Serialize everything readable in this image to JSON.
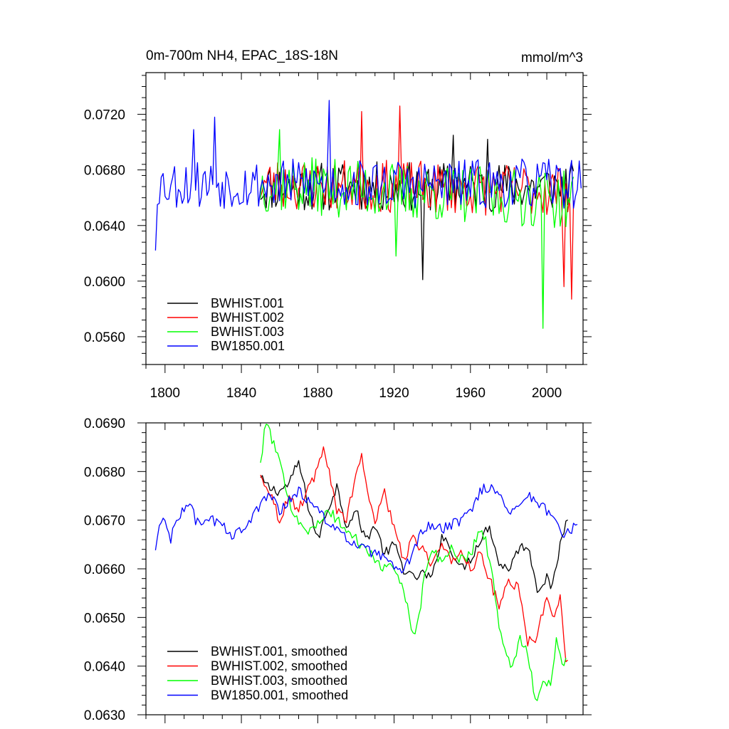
{
  "colors": {
    "black": "#000000",
    "red": "#ff0000",
    "green": "#00ff00",
    "blue": "#0000ff"
  },
  "chart_data": [
    {
      "type": "line",
      "title": "0m-700m NH4, EPAC_18S-18N",
      "units": "mmol/m^3",
      "xlim": [
        1790,
        2019
      ],
      "ylim": [
        0.054,
        0.075
      ],
      "xticks": [
        1800,
        1840,
        1880,
        1920,
        1960,
        2000
      ],
      "xtick_labels": [
        "1800",
        "1840",
        "1880",
        "1920",
        "1960",
        "2000"
      ],
      "yticks": [
        0.056,
        0.06,
        0.064,
        0.068,
        0.072
      ],
      "ytick_labels": [
        "0.0560",
        "0.0600",
        "0.0640",
        "0.0680",
        "0.0720"
      ],
      "legend_position": "bottom-left",
      "grid": false,
      "series": [
        {
          "name": "BWHIST.001",
          "color": "#000000",
          "start": 1850,
          "end": 2014,
          "base": 0.0668,
          "trend": 0.0,
          "amp": 0.0018,
          "seed": 11,
          "spikes": [
            [
              1935,
              0.0601
            ],
            [
              1951,
              0.0705
            ],
            [
              1969,
              0.0702
            ]
          ]
        },
        {
          "name": "BWHIST.002",
          "color": "#ff0000",
          "start": 1850,
          "end": 2014,
          "base": 0.067,
          "trend": -0.0005,
          "amp": 0.0019,
          "seed": 23,
          "spikes": [
            [
              1903,
              0.0722
            ],
            [
              1923,
              0.0726
            ],
            [
              2013,
              0.0587
            ],
            [
              2009,
              0.0596
            ]
          ]
        },
        {
          "name": "BWHIST.003",
          "color": "#00ff00",
          "start": 1850,
          "end": 2014,
          "base": 0.067,
          "trend": -0.0012,
          "amp": 0.0021,
          "seed": 37,
          "spikes": [
            [
              1860,
              0.0709
            ],
            [
              1998,
              0.0566
            ],
            [
              1921,
              0.0618
            ]
          ]
        },
        {
          "name": "BW1850.001",
          "color": "#0000ff",
          "start": 1795,
          "end": 2018,
          "base": 0.067,
          "trend": 0.0,
          "amp": 0.0018,
          "seed": 53,
          "spikes": [
            [
              1795,
              0.0622
            ],
            [
              1886,
              0.073
            ],
            [
              1815,
              0.0709
            ],
            [
              1826,
              0.0718
            ]
          ]
        }
      ]
    },
    {
      "type": "line",
      "xlim": [
        1790,
        2019
      ],
      "ylim": [
        0.063,
        0.069
      ],
      "xticks": [
        1800,
        1840,
        1880,
        1920,
        1960,
        2000
      ],
      "yticks": [
        0.063,
        0.064,
        0.065,
        0.066,
        0.067,
        0.068,
        0.069
      ],
      "ytick_labels": [
        "0.0630",
        "0.0640",
        "0.0650",
        "0.0660",
        "0.0670",
        "0.0680",
        "0.0690"
      ],
      "legend_position": "bottom-left",
      "grid": false,
      "series": [
        {
          "name": "BWHIST.001, smoothed",
          "color": "#000000",
          "start": 1850,
          "end": 2011,
          "anchors": [
            [
              1850,
              0.06785
            ],
            [
              1855,
              0.06765
            ],
            [
              1860,
              0.0676
            ],
            [
              1865,
              0.06775
            ],
            [
              1870,
              0.0682
            ],
            [
              1875,
              0.0673
            ],
            [
              1880,
              0.0666
            ],
            [
              1885,
              0.0672
            ],
            [
              1890,
              0.0677
            ],
            [
              1895,
              0.0669
            ],
            [
              1900,
              0.0672
            ],
            [
              1905,
              0.0666
            ],
            [
              1910,
              0.0669
            ],
            [
              1915,
              0.0663
            ],
            [
              1920,
              0.0665
            ],
            [
              1925,
              0.066
            ],
            [
              1930,
              0.0658
            ],
            [
              1935,
              0.0659
            ],
            [
              1940,
              0.0658
            ],
            [
              1945,
              0.0667
            ],
            [
              1950,
              0.0664
            ],
            [
              1955,
              0.066
            ],
            [
              1960,
              0.0662
            ],
            [
              1965,
              0.0666
            ],
            [
              1970,
              0.0669
            ],
            [
              1975,
              0.0661
            ],
            [
              1980,
              0.066
            ],
            [
              1985,
              0.0664
            ],
            [
              1990,
              0.0665
            ],
            [
              1995,
              0.0656
            ],
            [
              2000,
              0.0658
            ],
            [
              2003,
              0.0656
            ],
            [
              2007,
              0.0665
            ],
            [
              2011,
              0.0671
            ]
          ]
        },
        {
          "name": "BWHIST.002, smoothed",
          "color": "#ff0000",
          "start": 1850,
          "end": 2011,
          "anchors": [
            [
              1850,
              0.0679
            ],
            [
              1855,
              0.0676
            ],
            [
              1860,
              0.067
            ],
            [
              1865,
              0.0675
            ],
            [
              1870,
              0.0672
            ],
            [
              1875,
              0.0677
            ],
            [
              1880,
              0.068
            ],
            [
              1883,
              0.0686
            ],
            [
              1887,
              0.0678
            ],
            [
              1890,
              0.0672
            ],
            [
              1895,
              0.067
            ],
            [
              1900,
              0.0679
            ],
            [
              1903,
              0.0684
            ],
            [
              1906,
              0.0675
            ],
            [
              1910,
              0.067
            ],
            [
              1915,
              0.0676
            ],
            [
              1920,
              0.0668
            ],
            [
              1925,
              0.0662
            ],
            [
              1930,
              0.0666
            ],
            [
              1935,
              0.0664
            ],
            [
              1940,
              0.0661
            ],
            [
              1945,
              0.0665
            ],
            [
              1950,
              0.0661
            ],
            [
              1955,
              0.0664
            ],
            [
              1960,
              0.066
            ],
            [
              1965,
              0.0663
            ],
            [
              1970,
              0.0658
            ],
            [
              1975,
              0.0652
            ],
            [
              1980,
              0.0658
            ],
            [
              1985,
              0.0656
            ],
            [
              1990,
              0.0645
            ],
            [
              1995,
              0.0646
            ],
            [
              2000,
              0.0655
            ],
            [
              2004,
              0.065
            ],
            [
              2007,
              0.0654
            ],
            [
              2010,
              0.0642
            ]
          ]
        },
        {
          "name": "BWHIST.003, smoothed",
          "color": "#00ff00",
          "start": 1850,
          "end": 2010,
          "anchors": [
            [
              1850,
              0.06815
            ],
            [
              1852,
              0.0688
            ],
            [
              1854,
              0.06895
            ],
            [
              1858,
              0.0684
            ],
            [
              1862,
              0.0679
            ],
            [
              1866,
              0.0673
            ],
            [
              1870,
              0.067
            ],
            [
              1874,
              0.0668
            ],
            [
              1878,
              0.0668
            ],
            [
              1882,
              0.067
            ],
            [
              1886,
              0.0672
            ],
            [
              1890,
              0.067
            ],
            [
              1895,
              0.0668
            ],
            [
              1900,
              0.0666
            ],
            [
              1905,
              0.0664
            ],
            [
              1910,
              0.0662
            ],
            [
              1915,
              0.066
            ],
            [
              1920,
              0.066
            ],
            [
              1925,
              0.0656
            ],
            [
              1928,
              0.0651
            ],
            [
              1930,
              0.0646
            ],
            [
              1933,
              0.065
            ],
            [
              1936,
              0.0659
            ],
            [
              1940,
              0.0664
            ],
            [
              1945,
              0.0661
            ],
            [
              1950,
              0.0664
            ],
            [
              1955,
              0.0662
            ],
            [
              1960,
              0.0663
            ],
            [
              1965,
              0.0668
            ],
            [
              1968,
              0.0666
            ],
            [
              1972,
              0.0657
            ],
            [
              1975,
              0.0648
            ],
            [
              1978,
              0.0643
            ],
            [
              1982,
              0.064
            ],
            [
              1986,
              0.0646
            ],
            [
              1990,
              0.0643
            ],
            [
              1994,
              0.0633
            ],
            [
              1998,
              0.0636
            ],
            [
              2002,
              0.0637
            ],
            [
              2005,
              0.0645
            ],
            [
              2008,
              0.064
            ],
            [
              2010,
              0.0642
            ]
          ]
        },
        {
          "name": "BW1850.001, smoothed",
          "color": "#0000ff",
          "start": 1795,
          "end": 2016,
          "anchors": [
            [
              1795,
              0.06635
            ],
            [
              1797,
              0.0669
            ],
            [
              1800,
              0.067
            ],
            [
              1803,
              0.0666
            ],
            [
              1806,
              0.067
            ],
            [
              1810,
              0.0672
            ],
            [
              1813,
              0.0674
            ],
            [
              1816,
              0.067
            ],
            [
              1820,
              0.0669
            ],
            [
              1825,
              0.067
            ],
            [
              1830,
              0.0669
            ],
            [
              1835,
              0.0667
            ],
            [
              1840,
              0.0668
            ],
            [
              1845,
              0.067
            ],
            [
              1850,
              0.0673
            ],
            [
              1855,
              0.0676
            ],
            [
              1860,
              0.0672
            ],
            [
              1865,
              0.0674
            ],
            [
              1870,
              0.0676
            ],
            [
              1875,
              0.0674
            ],
            [
              1880,
              0.0672
            ],
            [
              1885,
              0.067
            ],
            [
              1890,
              0.0668
            ],
            [
              1895,
              0.0666
            ],
            [
              1900,
              0.0665
            ],
            [
              1905,
              0.0664
            ],
            [
              1910,
              0.0663
            ],
            [
              1915,
              0.0662
            ],
            [
              1920,
              0.066
            ],
            [
              1925,
              0.0659
            ],
            [
              1930,
              0.0664
            ],
            [
              1935,
              0.0668
            ],
            [
              1940,
              0.0669
            ],
            [
              1945,
              0.0668
            ],
            [
              1950,
              0.0669
            ],
            [
              1955,
              0.067
            ],
            [
              1960,
              0.0672
            ],
            [
              1965,
              0.0676
            ],
            [
              1970,
              0.0677
            ],
            [
              1975,
              0.0675
            ],
            [
              1980,
              0.0672
            ],
            [
              1985,
              0.0673
            ],
            [
              1990,
              0.0675
            ],
            [
              1995,
              0.0674
            ],
            [
              2000,
              0.0672
            ],
            [
              2005,
              0.0669
            ],
            [
              2010,
              0.0667
            ],
            [
              2016,
              0.0669
            ]
          ]
        }
      ]
    }
  ]
}
